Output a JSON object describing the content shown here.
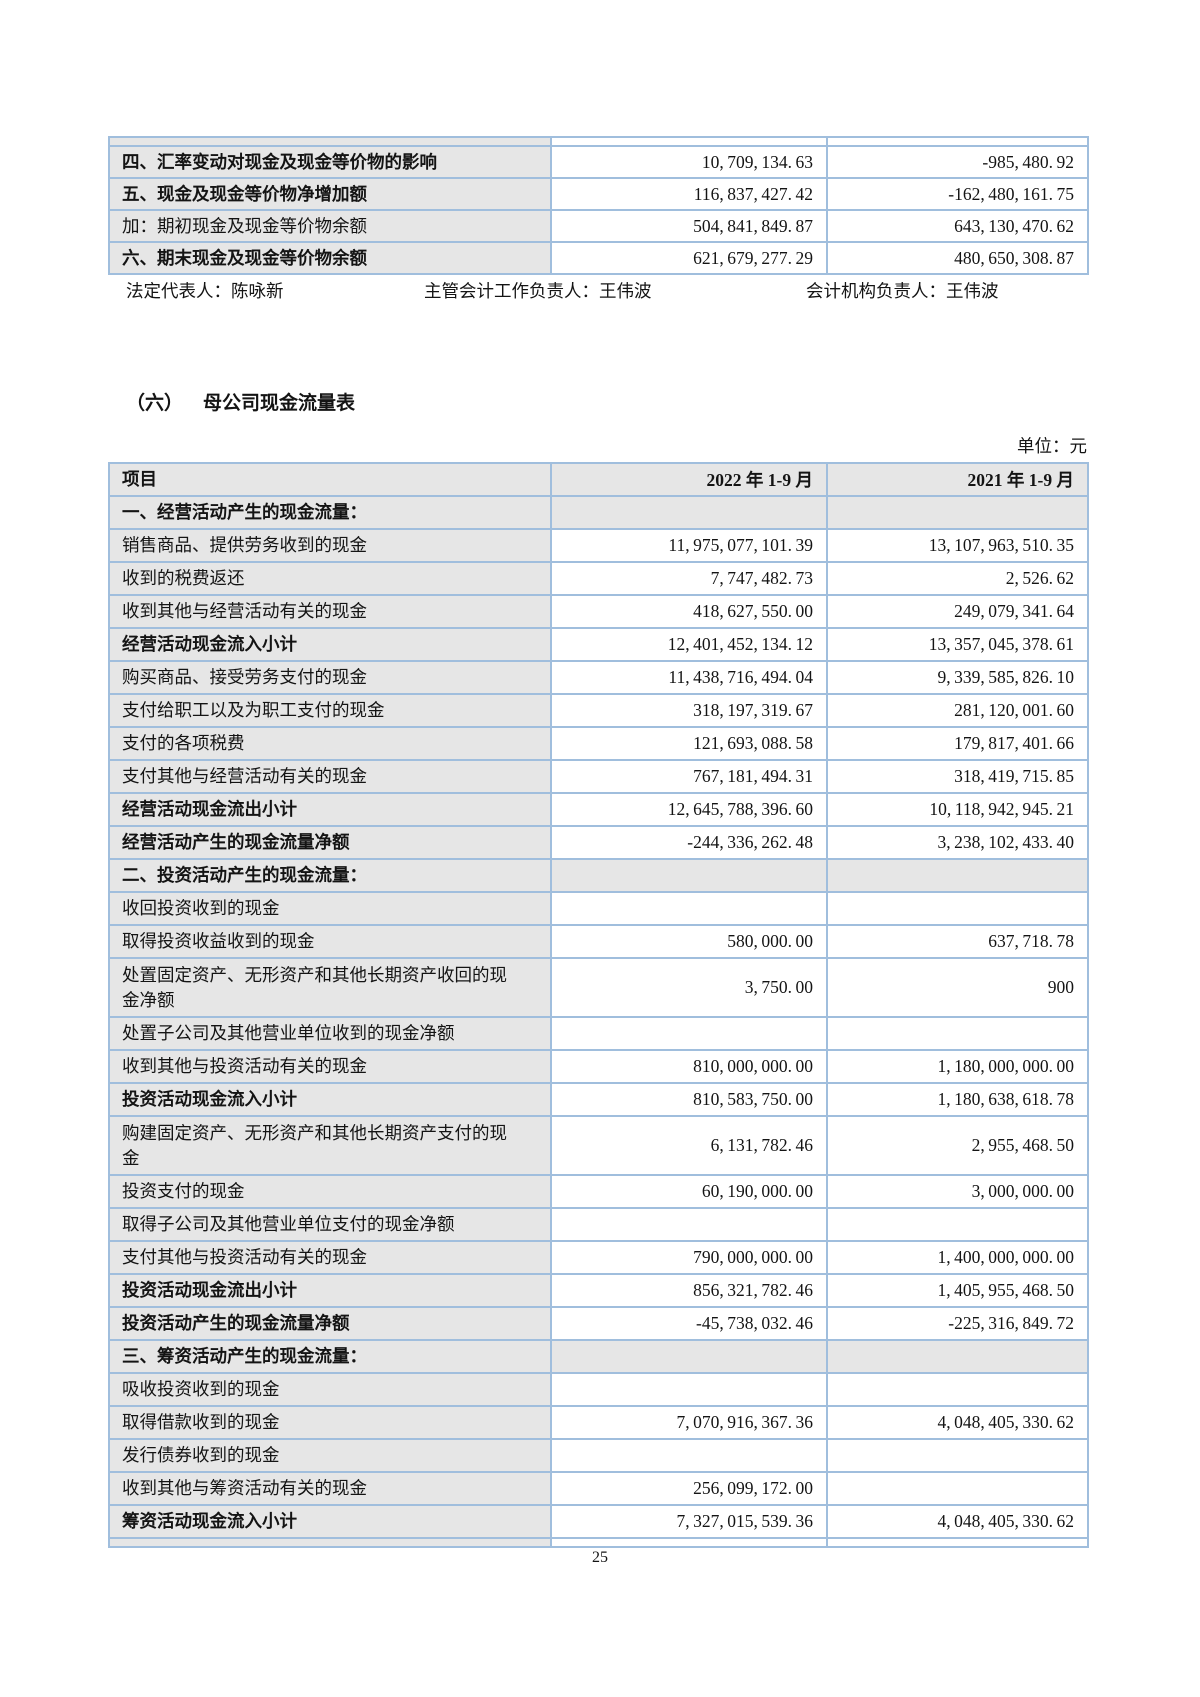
{
  "colors": {
    "table_border": "#a0bedd",
    "shaded_cell": "#e6e6e6",
    "text": "#141414"
  },
  "top_table": {
    "rows": [
      {
        "t": "data",
        "bold": true,
        "label": "四、汇率变动对现金及现金等价物的影响",
        "v1": "10,709,134.63",
        "v2": "-985,480.92"
      },
      {
        "t": "data",
        "bold": true,
        "label": "五、现金及现金等价物净增加额",
        "v1": "116,837,427.42",
        "v2": "-162,480,161.75"
      },
      {
        "t": "data",
        "bold": false,
        "label": "加：期初现金及现金等价物余额",
        "v1": "504,841,849.87",
        "v2": "643,130,470.62"
      },
      {
        "t": "data",
        "bold": true,
        "label": "六、期末现金及现金等价物余额",
        "v1": "621,679,277.29",
        "v2": "480,650,308.87"
      }
    ]
  },
  "signatures": {
    "legal_representative": "法定代表人：陈咏新",
    "chief_accounting_officer": "主管会计工作负责人：王伟波",
    "accounting_department_head": "会计机构负责人：王伟波"
  },
  "section": {
    "number": "（六）",
    "title": "母公司现金流量表"
  },
  "unit_label": "单位：元",
  "main_table": {
    "headers": [
      "项目",
      "2022 年 1-9 月",
      "2021 年 1-9 月"
    ],
    "rows": [
      {
        "t": "section",
        "label": "一、经营活动产生的现金流量：",
        "v1": "",
        "v2": ""
      },
      {
        "t": "data",
        "label": "销售商品、提供劳务收到的现金",
        "v1": "11,975,077,101.39",
        "v2": "13,107,963,510.35"
      },
      {
        "t": "data",
        "label": "收到的税费返还",
        "v1": "7,747,482.73",
        "v2": "2,526.62"
      },
      {
        "t": "data",
        "label": "收到其他与经营活动有关的现金",
        "v1": "418,627,550.00",
        "v2": "249,079,341.64"
      },
      {
        "t": "subtotal",
        "label": "经营活动现金流入小计",
        "v1": "12,401,452,134.12",
        "v2": "13,357,045,378.61"
      },
      {
        "t": "data",
        "label": "购买商品、接受劳务支付的现金",
        "v1": "11,438,716,494.04",
        "v2": "9,339,585,826.10"
      },
      {
        "t": "data",
        "label": "支付给职工以及为职工支付的现金",
        "v1": "318,197,319.67",
        "v2": "281,120,001.60"
      },
      {
        "t": "data",
        "label": "支付的各项税费",
        "v1": "121,693,088.58",
        "v2": "179,817,401.66"
      },
      {
        "t": "data",
        "label": "支付其他与经营活动有关的现金",
        "v1": "767,181,494.31",
        "v2": "318,419,715.85"
      },
      {
        "t": "subtotal",
        "label": "经营活动现金流出小计",
        "v1": "12,645,788,396.60",
        "v2": "10,118,942,945.21"
      },
      {
        "t": "subtotal",
        "label": "经营活动产生的现金流量净额",
        "v1": "-244,336,262.48",
        "v2": "3,238,102,433.40"
      },
      {
        "t": "section",
        "label": "二、投资活动产生的现金流量：",
        "v1": "",
        "v2": ""
      },
      {
        "t": "data",
        "label": "收回投资收到的现金",
        "v1": "",
        "v2": ""
      },
      {
        "t": "data",
        "label": "取得投资收益收到的现金",
        "v1": "580,000.00",
        "v2": "637,718.78"
      },
      {
        "t": "data",
        "tall": true,
        "label": "处置固定资产、无形资产和其他长期资产收回的现金净额",
        "v1": "3,750.00",
        "v2": "900"
      },
      {
        "t": "data",
        "label": "处置子公司及其他营业单位收到的现金净额",
        "v1": "",
        "v2": ""
      },
      {
        "t": "data",
        "label": "收到其他与投资活动有关的现金",
        "v1": "810,000,000.00",
        "v2": "1,180,000,000.00"
      },
      {
        "t": "subtotal",
        "label": "投资活动现金流入小计",
        "v1": "810,583,750.00",
        "v2": "1,180,638,618.78"
      },
      {
        "t": "data",
        "tall": true,
        "label": "购建固定资产、无形资产和其他长期资产支付的现金",
        "v1": "6,131,782.46",
        "v2": "2,955,468.50"
      },
      {
        "t": "data",
        "label": "投资支付的现金",
        "v1": "60,190,000.00",
        "v2": "3,000,000.00"
      },
      {
        "t": "data",
        "label": "取得子公司及其他营业单位支付的现金净额",
        "v1": "",
        "v2": ""
      },
      {
        "t": "data",
        "label": "支付其他与投资活动有关的现金",
        "v1": "790,000,000.00",
        "v2": "1,400,000,000.00"
      },
      {
        "t": "subtotal",
        "label": "投资活动现金流出小计",
        "v1": "856,321,782.46",
        "v2": "1,405,955,468.50"
      },
      {
        "t": "subtotal",
        "label": "投资活动产生的现金流量净额",
        "v1": "-45,738,032.46",
        "v2": "-225,316,849.72"
      },
      {
        "t": "section",
        "label": "三、筹资活动产生的现金流量：",
        "v1": "",
        "v2": ""
      },
      {
        "t": "data",
        "label": "吸收投资收到的现金",
        "v1": "",
        "v2": ""
      },
      {
        "t": "data",
        "label": "取得借款收到的现金",
        "v1": "7,070,916,367.36",
        "v2": "4,048,405,330.62"
      },
      {
        "t": "data",
        "label": "发行债券收到的现金",
        "v1": "",
        "v2": ""
      },
      {
        "t": "data",
        "label": "收到其他与筹资活动有关的现金",
        "v1": "256,099,172.00",
        "v2": ""
      },
      {
        "t": "subtotal",
        "label": "筹资活动现金流入小计",
        "v1": "7,327,015,539.36",
        "v2": "4,048,405,330.62"
      }
    ]
  },
  "page": {
    "number": "25"
  }
}
